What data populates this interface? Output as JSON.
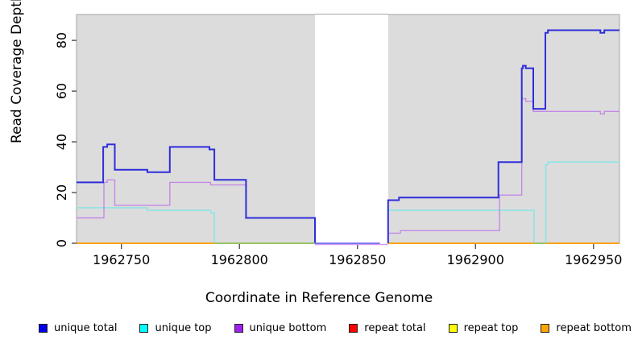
{
  "chart_data": {
    "type": "line",
    "subtype": "step-coverage",
    "xlabel": "Coordinate in Reference Genome",
    "ylabel": "Read Coverage Depth",
    "xlim": [
      1962731,
      1962961
    ],
    "ylim": [
      0,
      90.2
    ],
    "xticks": [
      1962750,
      1962800,
      1962850,
      1962900,
      1962950
    ],
    "yticks": [
      0,
      20,
      40,
      60,
      80
    ],
    "plot_bg_color": "#DCDCDC",
    "plot_border_color": "#A5A5A5",
    "tick_color": "#333333",
    "masked_region": {
      "from": 1962832,
      "to": 1962863,
      "color": "#FFFFFF"
    },
    "series": [
      {
        "name": "repeat total",
        "color": "#E00000",
        "width": 1.4,
        "segments": [
          [
            [
              1962731,
              0
            ],
            [
              1962832,
              0
            ]
          ],
          [
            [
              1962863,
              0
            ],
            [
              1962961,
              0
            ]
          ]
        ]
      },
      {
        "name": "repeat top",
        "color": "#F2F200",
        "width": 1.4,
        "segments": [
          [
            [
              1962731,
              0
            ],
            [
              1962832,
              0
            ]
          ],
          [
            [
              1962863,
              0
            ],
            [
              1962961,
              0
            ]
          ]
        ]
      },
      {
        "name": "repeat bottom",
        "color": "#FFA012",
        "width": 1.8,
        "segments": [
          [
            [
              1962731,
              0
            ],
            [
              1962832,
              0
            ]
          ],
          [
            [
              1962863,
              0
            ],
            [
              1962961,
              0
            ]
          ]
        ]
      },
      {
        "name": "unique top",
        "color": "#7FE6E6",
        "width": 1.4,
        "segments": [
          [
            [
              1962731,
              14
            ],
            [
              1962761,
              13
            ],
            [
              1962787.8,
              12
            ],
            [
              1962789.4,
              0
            ]
          ],
          [
            [
              1962863,
              0
            ],
            [
              1962863,
              13
            ],
            [
              1962924.8,
              0
            ]
          ],
          [
            [
              1962929.8,
              0
            ],
            [
              1962929.8,
              31
            ],
            [
              1962930.7,
              32
            ],
            [
              1962961,
              32
            ]
          ]
        ]
      },
      {
        "name": "unique bottom",
        "color": "#C489E6",
        "width": 1.4,
        "segments": [
          [
            [
              1962731,
              10
            ],
            [
              1962742.6,
              24
            ],
            [
              1962744,
              25
            ],
            [
              1962747.2,
              15
            ],
            [
              1962770.5,
              24
            ],
            [
              1962787.8,
              23
            ],
            [
              1962802.8,
              10
            ],
            [
              1962832,
              0
            ]
          ],
          [
            [
              1962863,
              0
            ],
            [
              1962863,
              4
            ],
            [
              1962868.2,
              5
            ],
            [
              1962910.2,
              19
            ],
            [
              1962919.6,
              57
            ],
            [
              1962921.3,
              56
            ],
            [
              1962924.5,
              52
            ],
            [
              1962952.9,
              51
            ],
            [
              1962954.6,
              52
            ],
            [
              1962961,
              52
            ]
          ]
        ]
      },
      {
        "name": "unique total",
        "color": "#2E2EDB",
        "width": 2,
        "segments": [
          [
            [
              1962731,
              24
            ],
            [
              1962742.3,
              38
            ],
            [
              1962744,
              39
            ],
            [
              1962747.2,
              29
            ],
            [
              1962761,
              28
            ],
            [
              1962770.5,
              38
            ],
            [
              1962787.3,
              37
            ],
            [
              1962789.4,
              25
            ],
            [
              1962802.8,
              10
            ],
            [
              1962832,
              0
            ]
          ],
          [
            [
              1962863,
              0
            ],
            [
              1962863,
              17
            ],
            [
              1962867.6,
              18
            ],
            [
              1962909.7,
              32
            ],
            [
              1962919.6,
              69
            ],
            [
              1962920.1,
              70
            ],
            [
              1962921.3,
              69
            ],
            [
              1962924.5,
              53
            ],
            [
              1962929.6,
              83
            ],
            [
              1962930.7,
              84
            ],
            [
              1962952.9,
              83
            ],
            [
              1962954.6,
              84
            ],
            [
              1962961,
              84
            ]
          ]
        ]
      }
    ],
    "baseline_overlays": [
      {
        "name": "unique-top-over-repeat-bottom-blend",
        "color": "#7CCB7C",
        "y": 0,
        "from": 1962789.4,
        "to": 1962832,
        "dy": 0
      },
      {
        "name": "unique-top-over-repeat-bottom-blend",
        "color": "#7CCB7C",
        "y": 0,
        "from": 1962924.8,
        "to": 1962929.8,
        "dy": 0
      },
      {
        "name": "unique-bottom-in-masked-region",
        "color": "#D29BF3",
        "y": 0,
        "from": 1962832,
        "to": 1962863,
        "dy": 1.5
      },
      {
        "name": "unique-total-in-masked-region",
        "color": "#5A5AEE",
        "y": 0,
        "from": 1962832,
        "to": 1962859.5,
        "dy": 0
      }
    ],
    "legend": [
      {
        "label": "unique total",
        "fill": "#0000EE"
      },
      {
        "label": "unique top",
        "fill": "#00FFFF"
      },
      {
        "label": "unique bottom",
        "fill": "#A020F0"
      },
      {
        "label": "repeat total",
        "fill": "#FF0000"
      },
      {
        "label": "repeat top",
        "fill": "#FFFF00"
      },
      {
        "label": "repeat bottom",
        "fill": "#FFA500"
      }
    ]
  }
}
